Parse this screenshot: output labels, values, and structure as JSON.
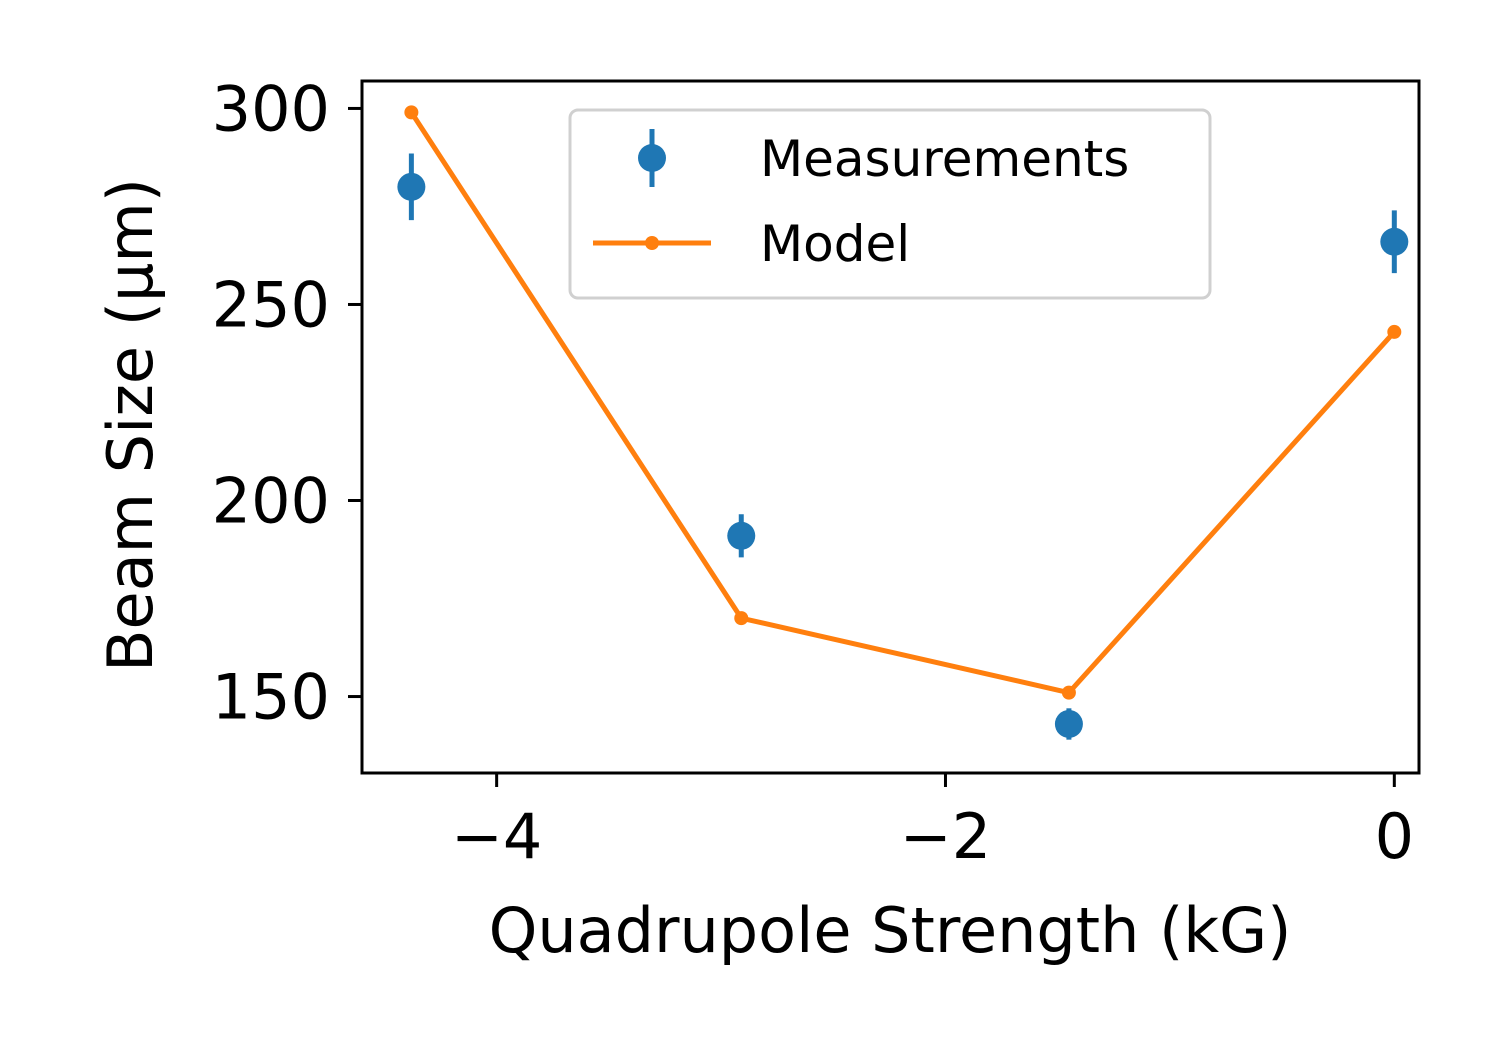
{
  "chart_data": {
    "type": "scatter",
    "xlabel": "Quadrupole Strength (kG)",
    "ylabel": "Beam Size (μm)",
    "xlim": [
      -4.6,
      0.11
    ],
    "ylim": [
      130.5,
      307
    ],
    "xticks": [
      -4,
      -2,
      0
    ],
    "xtick_labels": [
      "−4",
      "−2",
      "0"
    ],
    "yticks": [
      150,
      200,
      250,
      300
    ],
    "ytick_labels": [
      "150",
      "200",
      "250",
      "300"
    ],
    "grid": false,
    "legend_position": "upper center",
    "series": [
      {
        "name": "Measurements",
        "kind": "errorbar",
        "color": "#1f77b4",
        "x": [
          -4.38,
          -2.91,
          -1.45,
          0.0
        ],
        "y": [
          280,
          191,
          143,
          266
        ],
        "yerr": [
          8.5,
          5.5,
          4,
          8
        ]
      },
      {
        "name": "Model",
        "kind": "line-marker",
        "color": "#ff7f0e",
        "x": [
          -4.38,
          -2.91,
          -1.45,
          0.0
        ],
        "y": [
          299,
          170,
          151,
          243
        ]
      }
    ]
  }
}
